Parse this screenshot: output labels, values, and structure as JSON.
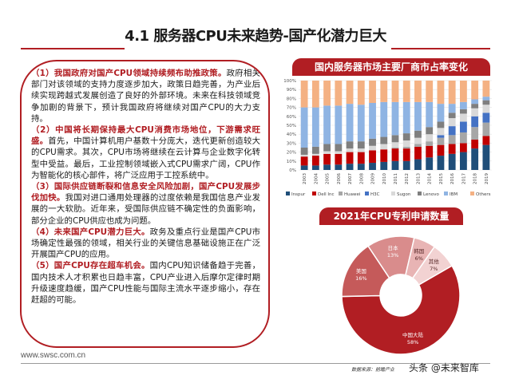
{
  "page": {
    "title": "4.1 服务器CPU未来趋势-国产化潜力巨大",
    "footer_url": "www.swsc.com.cn",
    "source": "数据来源：前瞻产业",
    "watermark": "头条 @未来智库"
  },
  "paragraphs": [
    {
      "highlight": "（1）我国政府对国产CPU领域持续频布助推政策。",
      "body": "政府相关部门对该领域的支持力度逐步加大，政策日趋完善，为产业后续实现跨越式发展创造了良好的外部环境。未来在科技领域竞争加剧的背景下，预计我国政府将继续对国产CPU的大力支持。"
    },
    {
      "highlight": "（2）中国将长期保持最大CPU消费市场地位，下游需求旺盛。",
      "body": "首先，中国计算机用户基数十分庞大，迭代更新创造较大的CPU需求。其次，CPU市场将继续在云计算与企业数字化转型中受益。最后，工业控制领域嵌入式CPU需求广阔，CPU作为智能化的核心部件，将广泛应用于工控系统中。"
    },
    {
      "highlight": "（3）国际供应链断裂和信息安全风险加剧，国产CPU发展步伐加快。",
      "body": "我国对进口通用处理器的过度依赖是我国信息产业发展的一大软肋。近年来，受国际供应链不确定性的负面影响，部分企业的CPU供应也成为问题。"
    },
    {
      "highlight": "（4）未来国产CPU潜力巨大。",
      "body": "政务及重点行业是国产CPU市场确定性最强的领域，相关行业的关键信息基础设施正在广泛开展国产CPU的应用。"
    },
    {
      "highlight": "（5）国产CPU存在超车机会。",
      "body": "国内CPU知识储备趋于完善，国内技术人才积累也日趋丰富，CPU产业进入后摩尔定律时期升级速度趋缓，国产CPU性能与国际主流水平逐步缩小，存在赶超的可能。"
    }
  ],
  "colors": {
    "accent": "#b11e23",
    "Inspur": "#1f4e79",
    "Dell Inc": "#c00000",
    "Huawei": "#a6a6a6",
    "H3C": "#4472c4",
    "Sugon": "#d9d9d9",
    "Lenovo": "#7f7f7f",
    "IBM": "#8fb4e3",
    "Others": "#f4b183"
  },
  "chart_data": [
    {
      "type": "bar",
      "stacked": true,
      "title": "国内服务器市场主要厂商市占率变化",
      "categories": [
        "2003",
        "2004",
        "2005",
        "2006",
        "2007",
        "2008",
        "2009",
        "2010",
        "2011",
        "2012",
        "2013",
        "2014",
        "2015",
        "2016",
        "2017",
        "2018",
        "2019"
      ],
      "yticks": [
        "0%",
        "10%",
        "20%",
        "30%",
        "40%",
        "50%",
        "60%",
        "70%",
        "80%",
        "90%",
        "100%"
      ],
      "ylim": [
        0,
        100
      ],
      "legend_position": "bottom",
      "series": [
        {
          "name": "Inspur",
          "values": [
            5,
            5,
            6,
            6,
            7,
            7,
            8,
            9,
            10,
            10,
            12,
            14,
            16,
            18,
            20,
            24,
            28
          ]
        },
        {
          "name": "Dell Inc",
          "values": [
            10,
            11,
            12,
            12,
            13,
            13,
            14,
            14,
            14,
            14,
            14,
            13,
            12,
            11,
            10,
            10,
            10
          ]
        },
        {
          "name": "Huawei",
          "values": [
            0,
            0,
            0,
            0,
            0,
            0,
            0,
            0,
            1,
            2,
            3,
            5,
            8,
            10,
            12,
            14,
            15
          ]
        },
        {
          "name": "H3C",
          "values": [
            0,
            0,
            0,
            0,
            0,
            0,
            0,
            0,
            0,
            0,
            0,
            0,
            3,
            10,
            12,
            12,
            11
          ]
        },
        {
          "name": "Sugon",
          "values": [
            2,
            2,
            3,
            3,
            4,
            4,
            5,
            6,
            6,
            7,
            7,
            8,
            8,
            9,
            9,
            9,
            9
          ]
        },
        {
          "name": "Lenovo",
          "values": [
            8,
            8,
            8,
            8,
            8,
            8,
            8,
            8,
            8,
            8,
            8,
            8,
            7,
            6,
            5,
            5,
            5
          ]
        },
        {
          "name": "IBM",
          "values": [
            45,
            44,
            43,
            43,
            42,
            41,
            40,
            39,
            37,
            35,
            32,
            28,
            20,
            10,
            8,
            5,
            4
          ]
        },
        {
          "name": "Others",
          "values": [
            30,
            30,
            28,
            28,
            26,
            27,
            25,
            24,
            24,
            24,
            24,
            24,
            26,
            26,
            24,
            21,
            18
          ]
        }
      ]
    },
    {
      "type": "pie",
      "title": "2021年CPU专利申请数量",
      "donut": true,
      "slices": [
        {
          "label": "中国大陆",
          "pct_label": "58%",
          "value": 58,
          "color": "#b11e23"
        },
        {
          "label": "美国",
          "pct_label": "16%",
          "value": 16,
          "color": "#c55a5a"
        },
        {
          "label": "日本",
          "pct_label": "13%",
          "value": 13,
          "color": "#d98c8c"
        },
        {
          "label": "韩国",
          "pct_label": "6%",
          "value": 6,
          "color": "#e8b4b4"
        },
        {
          "label": "其他",
          "pct_label": "7%",
          "value": 7,
          "color": "#f2d2d2"
        }
      ]
    }
  ]
}
